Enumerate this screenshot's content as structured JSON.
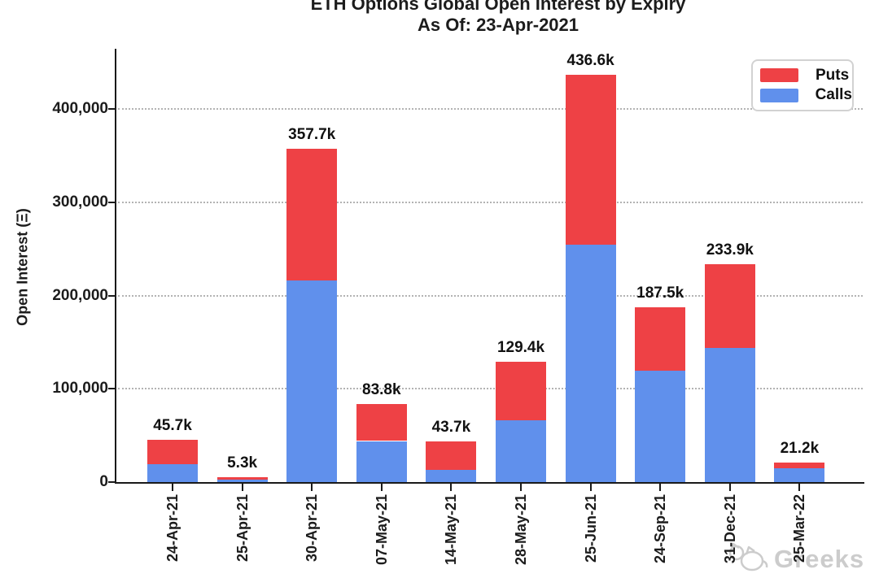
{
  "title": {
    "line1": "ETH Options Global Open Interest by Expiry",
    "line2": "As Of: 23-Apr-2021"
  },
  "y_axis": {
    "label": "Open Interest (Ξ)",
    "tick_labels": [
      "0",
      "100,000",
      "200,000",
      "300,000",
      "400,000"
    ]
  },
  "legend": {
    "items": [
      {
        "label": "Puts",
        "color": "#ee4145"
      },
      {
        "label": "Calls",
        "color": "#6090ec"
      }
    ]
  },
  "watermark": {
    "text": "Greeks",
    "logo": "cat-logo"
  },
  "colors": {
    "puts": "#ee4145",
    "calls": "#6090ec",
    "gridline": "#b3b3b3",
    "axis": "#1a1a1a",
    "watermark": "#cccccc"
  },
  "chart_data": {
    "type": "bar",
    "stacked": true,
    "title": "ETH Options Global Open Interest by Expiry — As Of: 23-Apr-2021",
    "xlabel": "",
    "ylabel": "Open Interest (Ξ)",
    "ylim": [
      0,
      465000
    ],
    "yticks": [
      0,
      100000,
      200000,
      300000,
      400000
    ],
    "grid": "horizontal-dotted",
    "legend_position": "upper right",
    "categories": [
      "24-Apr-21",
      "25-Apr-21",
      "30-Apr-21",
      "07-May-21",
      "14-May-21",
      "28-May-21",
      "25-Jun-21",
      "24-Sep-21",
      "31-Dec-21",
      "25-Mar-22"
    ],
    "series": [
      {
        "name": "Calls",
        "color": "#6090ec",
        "values": [
          19000,
          2300,
          215700,
          44000,
          12700,
          66500,
          254500,
          119000,
          144000,
          14400
        ]
      },
      {
        "name": "Puts",
        "color": "#ee4145",
        "values": [
          26700,
          3000,
          142000,
          39800,
          31000,
          62900,
          182100,
          68500,
          89900,
          6800
        ]
      }
    ],
    "totals": [
      45700,
      5300,
      357700,
      83800,
      43700,
      129400,
      436600,
      187500,
      233900,
      21200
    ],
    "bar_total_labels": [
      "45.7k",
      "5.3k",
      "357.7k",
      "83.8k",
      "43.7k",
      "129.4k",
      "436.6k",
      "187.5k",
      "233.9k",
      "21.2k"
    ]
  }
}
